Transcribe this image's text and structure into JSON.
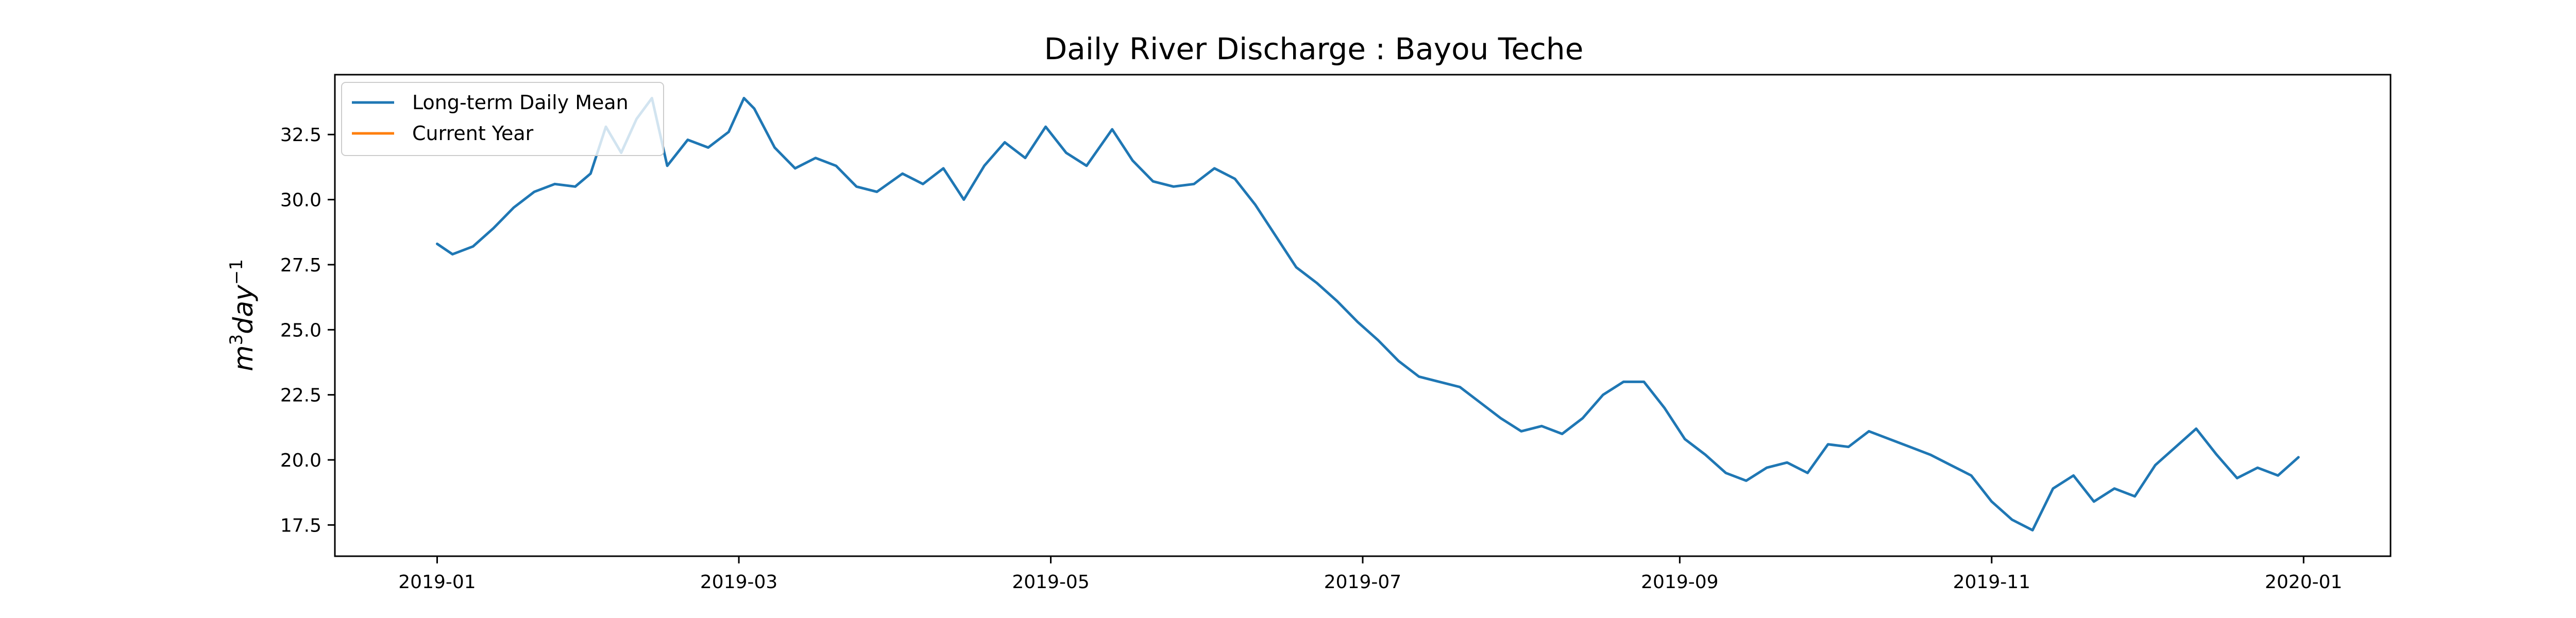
{
  "chart_data": {
    "type": "line",
    "title": "Daily River Discharge : Bayou Teche",
    "xlabel": "",
    "ylabel": "m³day⁻¹",
    "ylabel_parts": {
      "base1": "m",
      "sup1": "3",
      "base2": "day",
      "sup2": "−1"
    },
    "x_start": "2019-01-01",
    "x_end": "2019-12-31",
    "xlim": [
      "2018-12-12",
      "2020-01-18"
    ],
    "ylim": [
      16.3,
      34.8
    ],
    "x_ticks": [
      {
        "date": "2019-01-01",
        "label": "2019-01"
      },
      {
        "date": "2019-03-01",
        "label": "2019-03"
      },
      {
        "date": "2019-05-01",
        "label": "2019-05"
      },
      {
        "date": "2019-07-01",
        "label": "2019-07"
      },
      {
        "date": "2019-09-01",
        "label": "2019-09"
      },
      {
        "date": "2019-11-01",
        "label": "2019-11"
      },
      {
        "date": "2020-01-01",
        "label": "2020-01"
      }
    ],
    "y_ticks": [
      17.5,
      20.0,
      22.5,
      25.0,
      27.5,
      30.0,
      32.5
    ],
    "y_tick_labels": [
      "17.5",
      "20.0",
      "22.5",
      "25.0",
      "27.5",
      "30.0",
      "32.5"
    ],
    "grid": false,
    "legend_position": "upper-left",
    "series": [
      {
        "name": "Long-term Daily Mean",
        "color": "#1f77b4",
        "points": [
          [
            "2019-01-01",
            28.3
          ],
          [
            "2019-01-04",
            27.9
          ],
          [
            "2019-01-08",
            28.2
          ],
          [
            "2019-01-12",
            28.9
          ],
          [
            "2019-01-16",
            29.7
          ],
          [
            "2019-01-20",
            30.3
          ],
          [
            "2019-01-24",
            30.6
          ],
          [
            "2019-01-28",
            30.5
          ],
          [
            "2019-01-31",
            31.0
          ],
          [
            "2019-02-03",
            32.8
          ],
          [
            "2019-02-06",
            31.8
          ],
          [
            "2019-02-09",
            33.1
          ],
          [
            "2019-02-12",
            33.9
          ],
          [
            "2019-02-15",
            31.3
          ],
          [
            "2019-02-19",
            32.3
          ],
          [
            "2019-02-23",
            32.0
          ],
          [
            "2019-02-27",
            32.6
          ],
          [
            "2019-03-02",
            33.9
          ],
          [
            "2019-03-04",
            33.5
          ],
          [
            "2019-03-08",
            32.0
          ],
          [
            "2019-03-12",
            31.2
          ],
          [
            "2019-03-16",
            31.6
          ],
          [
            "2019-03-20",
            31.3
          ],
          [
            "2019-03-24",
            30.5
          ],
          [
            "2019-03-28",
            30.3
          ],
          [
            "2019-04-02",
            31.0
          ],
          [
            "2019-04-06",
            30.6
          ],
          [
            "2019-04-10",
            31.2
          ],
          [
            "2019-04-14",
            30.0
          ],
          [
            "2019-04-18",
            31.3
          ],
          [
            "2019-04-22",
            32.2
          ],
          [
            "2019-04-26",
            31.6
          ],
          [
            "2019-04-30",
            32.8
          ],
          [
            "2019-05-04",
            31.8
          ],
          [
            "2019-05-08",
            31.3
          ],
          [
            "2019-05-13",
            32.7
          ],
          [
            "2019-05-17",
            31.5
          ],
          [
            "2019-05-21",
            30.7
          ],
          [
            "2019-05-25",
            30.5
          ],
          [
            "2019-05-29",
            30.6
          ],
          [
            "2019-06-02",
            31.2
          ],
          [
            "2019-06-06",
            30.8
          ],
          [
            "2019-06-10",
            29.8
          ],
          [
            "2019-06-14",
            28.6
          ],
          [
            "2019-06-18",
            27.4
          ],
          [
            "2019-06-22",
            26.8
          ],
          [
            "2019-06-26",
            26.1
          ],
          [
            "2019-06-30",
            25.3
          ],
          [
            "2019-07-04",
            24.6
          ],
          [
            "2019-07-08",
            23.8
          ],
          [
            "2019-07-12",
            23.2
          ],
          [
            "2019-07-16",
            23.0
          ],
          [
            "2019-07-20",
            22.8
          ],
          [
            "2019-07-24",
            22.2
          ],
          [
            "2019-07-28",
            21.6
          ],
          [
            "2019-08-01",
            21.1
          ],
          [
            "2019-08-05",
            21.3
          ],
          [
            "2019-08-09",
            21.0
          ],
          [
            "2019-08-13",
            21.6
          ],
          [
            "2019-08-17",
            22.5
          ],
          [
            "2019-08-21",
            23.0
          ],
          [
            "2019-08-25",
            23.0
          ],
          [
            "2019-08-29",
            22.0
          ],
          [
            "2019-09-02",
            20.8
          ],
          [
            "2019-09-06",
            20.2
          ],
          [
            "2019-09-10",
            19.5
          ],
          [
            "2019-09-14",
            19.2
          ],
          [
            "2019-09-18",
            19.7
          ],
          [
            "2019-09-22",
            19.9
          ],
          [
            "2019-09-26",
            19.5
          ],
          [
            "2019-09-30",
            20.6
          ],
          [
            "2019-10-04",
            20.5
          ],
          [
            "2019-10-08",
            21.1
          ],
          [
            "2019-10-12",
            20.8
          ],
          [
            "2019-10-16",
            20.5
          ],
          [
            "2019-10-20",
            20.2
          ],
          [
            "2019-10-24",
            19.8
          ],
          [
            "2019-10-28",
            19.4
          ],
          [
            "2019-11-01",
            18.4
          ],
          [
            "2019-11-05",
            17.7
          ],
          [
            "2019-11-09",
            17.3
          ],
          [
            "2019-11-13",
            18.9
          ],
          [
            "2019-11-17",
            19.4
          ],
          [
            "2019-11-21",
            18.4
          ],
          [
            "2019-11-25",
            18.9
          ],
          [
            "2019-11-29",
            18.6
          ],
          [
            "2019-12-03",
            19.8
          ],
          [
            "2019-12-07",
            20.5
          ],
          [
            "2019-12-11",
            21.2
          ],
          [
            "2019-12-15",
            20.2
          ],
          [
            "2019-12-19",
            19.3
          ],
          [
            "2019-12-23",
            19.7
          ],
          [
            "2019-12-27",
            19.4
          ],
          [
            "2019-12-31",
            20.1
          ]
        ]
      },
      {
        "name": "Current Year",
        "color": "#ff7f0e",
        "points": []
      }
    ]
  }
}
